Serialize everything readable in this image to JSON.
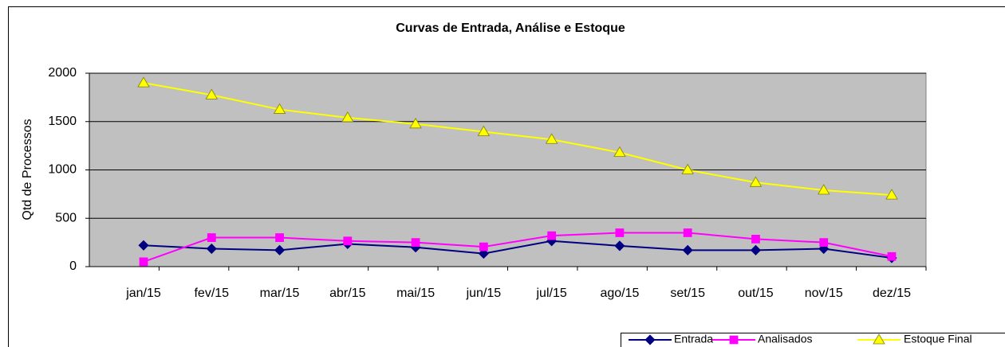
{
  "chart_data": {
    "type": "line",
    "title": "Curvas de Entrada, Análise e Estoque",
    "y_label": "Qtd de Processos",
    "categories": [
      "jan/15",
      "fev/15",
      "mar/15",
      "abr/15",
      "mai/15",
      "jun/15",
      "jul/15",
      "ago/15",
      "set/15",
      "out/15",
      "nov/15",
      "dez/15"
    ],
    "series": [
      {
        "name": "Entrada",
        "color": "#000080",
        "marker": "diamond",
        "values": [
          220,
          185,
          170,
          235,
          200,
          135,
          265,
          215,
          170,
          170,
          185,
          90
        ]
      },
      {
        "name": "Analisados",
        "color": "#ff00ff",
        "marker": "square",
        "values": [
          50,
          300,
          300,
          265,
          250,
          205,
          320,
          350,
          350,
          285,
          250,
          105
        ]
      },
      {
        "name": "Estoque Final",
        "color": "#ffff00",
        "marker": "triangle",
        "values": [
          1900,
          1775,
          1625,
          1540,
          1475,
          1395,
          1315,
          1180,
          1000,
          870,
          790,
          740
        ]
      }
    ],
    "ylim": [
      0,
      2000
    ],
    "yticks": [
      0,
      500,
      1000,
      1500,
      2000
    ],
    "grid": true,
    "legend": "bottom-right"
  }
}
